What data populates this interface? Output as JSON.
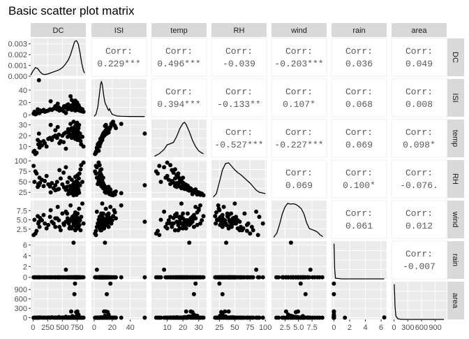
{
  "chart_data": {
    "type": "scatter",
    "title": "Basic scatter plot matrix",
    "variables": [
      "DC",
      "ISI",
      "temp",
      "RH",
      "wind",
      "rain",
      "area"
    ],
    "ranges": {
      "DC": [
        -40,
        900
      ],
      "ISI": [
        -3,
        58
      ],
      "temp": [
        0,
        35
      ],
      "RH": [
        12,
        102
      ],
      "wind": [
        0,
        10.2
      ],
      "rain": [
        -0.3,
        6.7
      ],
      "area": [
        -55,
        1150
      ]
    },
    "ticks": {
      "DC": {
        "values": [
          0,
          250,
          500,
          750
        ],
        "labels": [
          "0",
          "250",
          "500",
          "750"
        ]
      },
      "ISI": {
        "values": [
          0,
          20,
          40
        ],
        "labels": [
          "0",
          "20",
          "40"
        ]
      },
      "temp": {
        "values": [
          10,
          20,
          30
        ],
        "labels": [
          "10",
          "20",
          "30"
        ]
      },
      "RH": {
        "values": [
          25,
          50,
          75,
          100
        ],
        "labels": [
          "25",
          "50",
          "75",
          "100"
        ]
      },
      "wind": {
        "values": [
          2.5,
          5.0,
          7.5
        ],
        "labels": [
          "2.5",
          "5.0",
          "7.5"
        ]
      },
      "rain": {
        "values": [
          0,
          2,
          4,
          6
        ],
        "labels": [
          "0",
          "2",
          "4",
          "6"
        ]
      },
      "area": {
        "values": [
          0,
          300,
          600,
          900
        ],
        "labels": [
          "0",
          "300",
          "600",
          "900"
        ]
      }
    },
    "bottom_ticks": {
      "DC": [
        "0",
        "250",
        "500",
        "750"
      ],
      "ISI": [
        "0",
        "20",
        "40"
      ],
      "temp": [
        "10",
        "20",
        "30"
      ],
      "RH": [
        "25",
        "50",
        "75",
        "100"
      ],
      "wind": [
        "2.5",
        "5.0",
        "7.5"
      ],
      "rain": [
        "0",
        "2",
        "4",
        "6"
      ],
      "area": [
        "0",
        "300",
        "600",
        "900"
      ]
    },
    "density_axis": {
      "values": [
        0,
        0.001,
        0.002,
        0.003
      ],
      "labels": [
        "0.000",
        "0.001",
        "0.002",
        "0.003"
      ],
      "range": [
        0,
        0.0035
      ]
    },
    "correlations": [
      {
        "row": "ISI",
        "col": "DC",
        "label": "Corr:",
        "value": "0.229***"
      },
      {
        "row": "temp",
        "col": "DC",
        "label": "Corr:",
        "value": "0.496***"
      },
      {
        "row": "RH",
        "col": "DC",
        "label": "Corr:",
        "value": "-0.039"
      },
      {
        "row": "wind",
        "col": "DC",
        "label": "Corr:",
        "value": "-0.203***"
      },
      {
        "row": "rain",
        "col": "DC",
        "label": "Corr:",
        "value": "0.036"
      },
      {
        "row": "area",
        "col": "DC",
        "label": "Corr:",
        "value": "0.049"
      },
      {
        "row": "temp",
        "col": "ISI",
        "label": "Corr:",
        "value": "0.394***"
      },
      {
        "row": "RH",
        "col": "ISI",
        "label": "Corr:",
        "value": "-0.133**"
      },
      {
        "row": "wind",
        "col": "ISI",
        "label": "Corr:",
        "value": "0.107*"
      },
      {
        "row": "rain",
        "col": "ISI",
        "label": "Corr:",
        "value": "0.068"
      },
      {
        "row": "area",
        "col": "ISI",
        "label": "Corr:",
        "value": "0.008"
      },
      {
        "row": "RH",
        "col": "temp",
        "label": "Corr:",
        "value": "-0.527***"
      },
      {
        "row": "wind",
        "col": "temp",
        "label": "Corr:",
        "value": "-0.227***"
      },
      {
        "row": "rain",
        "col": "temp",
        "label": "Corr:",
        "value": "0.069"
      },
      {
        "row": "area",
        "col": "temp",
        "label": "Corr:",
        "value": "0.098*"
      },
      {
        "row": "wind",
        "col": "RH",
        "label": "Corr:",
        "value": "0.069"
      },
      {
        "row": "rain",
        "col": "RH",
        "label": "Corr:",
        "value": "0.100*"
      },
      {
        "row": "area",
        "col": "RH",
        "label": "Corr:",
        "value": "-0.076."
      },
      {
        "row": "rain",
        "col": "wind",
        "label": "Corr:",
        "value": "0.061"
      },
      {
        "row": "area",
        "col": "wind",
        "label": "Corr:",
        "value": "0.012"
      },
      {
        "row": "area",
        "col": "rain",
        "label": "Corr:",
        "value": "-0.007"
      }
    ],
    "densities": {
      "DC": {
        "x": [
          -40,
          0,
          40,
          80,
          120,
          160,
          200,
          250,
          300,
          350,
          400,
          450,
          500,
          550,
          600,
          640,
          680,
          710,
          740,
          770,
          800,
          830,
          860,
          880
        ],
        "y": [
          0.0001,
          0.0005,
          0.0008,
          0.0007,
          0.0004,
          0.0002,
          0.00015,
          0.0002,
          0.0003,
          0.0004,
          0.0005,
          0.0006,
          0.0008,
          0.0011,
          0.0015,
          0.002,
          0.0027,
          0.0032,
          0.0033,
          0.003,
          0.0022,
          0.0012,
          0.0005,
          0.0003
        ]
      },
      "ISI": {
        "x": [
          0,
          2,
          4,
          6,
          7,
          8,
          9,
          10,
          11,
          12,
          13,
          14,
          15,
          16,
          17,
          18,
          20,
          25,
          30,
          40,
          50,
          56
        ],
        "y": [
          0.05,
          0.3,
          1.2,
          3.0,
          4.0,
          4.4,
          4.1,
          3.2,
          2.4,
          1.8,
          1.5,
          1.3,
          1.0,
          0.8,
          1.0,
          0.7,
          0.3,
          0.1,
          0.05,
          0.03,
          0.03,
          0.02
        ]
      },
      "temp": {
        "x": [
          2,
          5,
          8,
          10,
          12,
          14,
          16,
          18,
          20,
          21,
          22,
          24,
          26,
          28,
          30,
          32,
          33
        ],
        "y": [
          0.03,
          0.1,
          0.22,
          0.35,
          0.38,
          0.42,
          0.58,
          0.8,
          0.95,
          0.98,
          0.92,
          0.72,
          0.48,
          0.3,
          0.18,
          0.12,
          0.1
        ]
      },
      "RH": {
        "x": [
          15,
          20,
          25,
          30,
          35,
          40,
          45,
          50,
          55,
          60,
          65,
          70,
          75,
          80,
          85,
          90,
          95,
          100
        ],
        "y": [
          0.02,
          0.12,
          0.45,
          0.8,
          0.98,
          1.0,
          0.9,
          0.8,
          0.72,
          0.66,
          0.58,
          0.5,
          0.42,
          0.32,
          0.22,
          0.16,
          0.14,
          0.12
        ]
      },
      "wind": {
        "x": [
          0.4,
          1,
          1.5,
          2,
          2.5,
          3,
          3.5,
          4,
          4.5,
          5,
          5.5,
          6,
          6.5,
          7,
          7.5,
          8,
          8.5,
          9,
          9.5
        ],
        "y": [
          0.03,
          0.15,
          0.4,
          0.7,
          0.9,
          1.0,
          0.98,
          0.99,
          0.97,
          0.92,
          0.85,
          0.7,
          0.45,
          0.28,
          0.25,
          0.22,
          0.18,
          0.1,
          0.05
        ]
      },
      "rain": {
        "x": [
          0,
          0.02,
          0.05,
          0.1,
          0.2,
          1,
          3,
          6.4
        ],
        "y": [
          1.0,
          1.0,
          0.8,
          0.3,
          0.02,
          0.0,
          0.0,
          0.0
        ]
      },
      "area": {
        "x": [
          0,
          5,
          10,
          20,
          40,
          80,
          150,
          300,
          600,
          1090
        ],
        "y": [
          1.0,
          1.0,
          0.8,
          0.4,
          0.1,
          0.02,
          0.005,
          0.0,
          0.0,
          0.0
        ]
      }
    },
    "points": [
      {
        "DC": 24,
        "ISI": 5,
        "temp": 6,
        "RH": 50,
        "wind": 5.0,
        "rain": 0,
        "area": 0
      },
      {
        "DC": 60,
        "ISI": 2,
        "temp": 4,
        "RH": 70,
        "wind": 2.0,
        "rain": 0,
        "area": 0
      },
      {
        "DC": 80,
        "ISI": 9,
        "temp": 16,
        "RH": 38,
        "wind": 6.0,
        "rain": 0,
        "area": 0
      },
      {
        "DC": 90,
        "ISI": 4,
        "temp": 12,
        "RH": 45,
        "wind": 4.0,
        "rain": 0,
        "area": 5
      },
      {
        "DC": 100,
        "ISI": 56,
        "temp": 22,
        "RH": 42,
        "wind": 4.5,
        "rain": 0,
        "area": 0
      },
      {
        "DC": 110,
        "ISI": 3,
        "temp": 9,
        "RH": 60,
        "wind": 3.1,
        "rain": 0,
        "area": 0
      },
      {
        "DC": 120,
        "ISI": 7,
        "temp": 14,
        "RH": 48,
        "wind": 5.5,
        "rain": 0,
        "area": 10
      },
      {
        "DC": 150,
        "ISI": 6,
        "temp": 11,
        "RH": 55,
        "wind": 4.9,
        "rain": 0,
        "area": 0
      },
      {
        "DC": 180,
        "ISI": 8,
        "temp": 15,
        "RH": 40,
        "wind": 6.3,
        "rain": 0,
        "area": 3
      },
      {
        "DC": 200,
        "ISI": 5,
        "temp": 13,
        "RH": 52,
        "wind": 4.0,
        "rain": 0,
        "area": 0
      },
      {
        "DC": 230,
        "ISI": 6,
        "temp": 10,
        "RH": 64,
        "wind": 2.7,
        "rain": 0,
        "area": 0
      },
      {
        "DC": 260,
        "ISI": 7,
        "temp": 17,
        "RH": 44,
        "wind": 3.6,
        "rain": 0,
        "area": 6
      },
      {
        "DC": 290,
        "ISI": 9,
        "temp": 18,
        "RH": 39,
        "wind": 5.8,
        "rain": 0,
        "area": 0
      },
      {
        "DC": 320,
        "ISI": 8,
        "temp": 16,
        "RH": 47,
        "wind": 4.5,
        "rain": 0,
        "area": 12
      },
      {
        "DC": 350,
        "ISI": 10,
        "temp": 19,
        "RH": 35,
        "wind": 4.0,
        "rain": 0,
        "area": 0
      },
      {
        "DC": 380,
        "ISI": 11,
        "temp": 20,
        "RH": 42,
        "wind": 3.1,
        "rain": 0,
        "area": 4
      },
      {
        "DC": 410,
        "ISI": 9,
        "temp": 18,
        "RH": 50,
        "wind": 5.4,
        "rain": 0,
        "area": 0
      },
      {
        "DC": 440,
        "ISI": 12,
        "temp": 21,
        "RH": 33,
        "wind": 4.9,
        "rain": 0,
        "area": 20
      },
      {
        "DC": 470,
        "ISI": 8,
        "temp": 15,
        "RH": 58,
        "wind": 2.2,
        "rain": 0,
        "area": 0
      },
      {
        "DC": 500,
        "ISI": 10,
        "temp": 20,
        "RH": 44,
        "wind": 6.7,
        "rain": 0,
        "area": 8
      },
      {
        "DC": 530,
        "ISI": 14,
        "temp": 22,
        "RH": 37,
        "wind": 3.6,
        "rain": 0,
        "area": 0
      },
      {
        "DC": 560,
        "ISI": 12,
        "temp": 23,
        "RH": 31,
        "wind": 4.5,
        "rain": 0,
        "area": 30
      },
      {
        "DC": 590,
        "ISI": 9,
        "temp": 19,
        "RH": 49,
        "wind": 5.4,
        "rain": 0,
        "area": 0
      },
      {
        "DC": 610,
        "ISI": 15,
        "temp": 24,
        "RH": 29,
        "wind": 4.0,
        "rain": 0,
        "area": 15
      },
      {
        "DC": 630,
        "ISI": 11,
        "temp": 21,
        "RH": 40,
        "wind": 3.1,
        "rain": 0,
        "area": 0
      },
      {
        "DC": 650,
        "ISI": 13,
        "temp": 25,
        "RH": 34,
        "wind": 4.9,
        "rain": 0,
        "area": 200
      },
      {
        "DC": 660,
        "ISI": 8,
        "temp": 18,
        "RH": 55,
        "wind": 2.7,
        "rain": 0,
        "area": 0
      },
      {
        "DC": 670,
        "ISI": 16,
        "temp": 26,
        "RH": 27,
        "wind": 5.8,
        "rain": 0,
        "area": 50
      },
      {
        "DC": 680,
        "ISI": 10,
        "temp": 22,
        "RH": 43,
        "wind": 4.5,
        "rain": 0,
        "area": 0
      },
      {
        "DC": 690,
        "ISI": 12,
        "temp": 24,
        "RH": 36,
        "wind": 3.6,
        "rain": 6.4,
        "area": 10
      },
      {
        "DC": 700,
        "ISI": 9,
        "temp": 20,
        "RH": 48,
        "wind": 4.0,
        "rain": 0,
        "area": 0
      },
      {
        "DC": 705,
        "ISI": 14,
        "temp": 27,
        "RH": 30,
        "wind": 6.3,
        "rain": 0,
        "area": 750
      },
      {
        "DC": 710,
        "ISI": 11,
        "temp": 23,
        "RH": 41,
        "wind": 4.9,
        "rain": 0,
        "area": 0
      },
      {
        "DC": 715,
        "ISI": 18,
        "temp": 28,
        "RH": 25,
        "wind": 5.4,
        "rain": 0,
        "area": 1090
      },
      {
        "DC": 720,
        "ISI": 7,
        "temp": 17,
        "RH": 62,
        "wind": 2.2,
        "rain": 0,
        "area": 0
      },
      {
        "DC": 725,
        "ISI": 13,
        "temp": 25,
        "RH": 33,
        "wind": 4.0,
        "rain": 0,
        "area": 25
      },
      {
        "DC": 730,
        "ISI": 10,
        "temp": 21,
        "RH": 45,
        "wind": 3.1,
        "rain": 0,
        "area": 0
      },
      {
        "DC": 735,
        "ISI": 15,
        "temp": 26,
        "RH": 28,
        "wind": 4.5,
        "rain": 0,
        "area": 180
      },
      {
        "DC": 740,
        "ISI": 9,
        "temp": 19,
        "RH": 52,
        "wind": 5.8,
        "rain": 0,
        "area": 0
      },
      {
        "DC": 745,
        "ISI": 12,
        "temp": 29,
        "RH": 26,
        "wind": 3.6,
        "rain": 0,
        "area": 60
      },
      {
        "DC": 750,
        "ISI": 20,
        "temp": 32,
        "RH": 22,
        "wind": 4.9,
        "rain": 0,
        "area": 0
      },
      {
        "DC": 755,
        "ISI": 11,
        "temp": 22,
        "RH": 40,
        "wind": 2.7,
        "rain": 0,
        "area": 200
      },
      {
        "DC": 760,
        "ISI": 8,
        "temp": 16,
        "RH": 66,
        "wind": 6.7,
        "rain": 0,
        "area": 0
      },
      {
        "DC": 765,
        "ISI": 14,
        "temp": 24,
        "RH": 35,
        "wind": 4.0,
        "rain": 0,
        "area": 40
      },
      {
        "DC": 770,
        "ISI": 10,
        "temp": 20,
        "RH": 47,
        "wind": 5.4,
        "rain": 0,
        "area": 0
      },
      {
        "DC": 775,
        "ISI": 16,
        "temp": 27,
        "RH": 30,
        "wind": 3.1,
        "rain": 0,
        "area": 100
      },
      {
        "DC": 780,
        "ISI": 9,
        "temp": 18,
        "RH": 58,
        "wind": 4.5,
        "rain": 0,
        "area": 0
      },
      {
        "DC": 785,
        "ISI": 13,
        "temp": 30,
        "RH": 24,
        "wind": 8.0,
        "rain": 0,
        "area": 0
      },
      {
        "DC": 790,
        "ISI": 7,
        "temp": 17,
        "RH": 70,
        "wind": 3.6,
        "rain": 0,
        "area": 0
      },
      {
        "DC": 800,
        "ISI": 11,
        "temp": 22,
        "RH": 42,
        "wind": 4.9,
        "rain": 0,
        "area": 5
      },
      {
        "DC": 810,
        "ISI": 8,
        "temp": 15,
        "RH": 80,
        "wind": 2.2,
        "rain": 0,
        "area": 0
      },
      {
        "DC": 820,
        "ISI": 6,
        "temp": 12,
        "RH": 90,
        "wind": 5.8,
        "rain": 0,
        "area": 0
      },
      {
        "DC": 840,
        "ISI": 9,
        "temp": 19,
        "RH": 50,
        "wind": 9.4,
        "rain": 0,
        "area": 0
      },
      {
        "DC": 860,
        "ISI": 5,
        "temp": 10,
        "RH": 96,
        "wind": 4.0,
        "rain": 0,
        "area": 0
      },
      {
        "DC": 300,
        "ISI": 22,
        "temp": 30,
        "RH": 25,
        "wind": 7.6,
        "rain": 0,
        "area": 0
      },
      {
        "DC": 420,
        "ISI": 18,
        "temp": 28,
        "RH": 32,
        "wind": 8.5,
        "rain": 0,
        "area": 0
      },
      {
        "DC": 560,
        "ISI": 3,
        "temp": 8,
        "RH": 85,
        "wind": 7.2,
        "rain": 1.4,
        "area": 0
      },
      {
        "DC": 600,
        "ISI": 17,
        "temp": 26,
        "RH": 21,
        "wind": 5.0,
        "rain": 0,
        "area": 0
      },
      {
        "DC": 690,
        "ISI": 21,
        "temp": 33,
        "RH": 18,
        "wind": 6.0,
        "rain": 0,
        "area": 0
      },
      {
        "DC": 720,
        "ISI": 23,
        "temp": 29,
        "RH": 20,
        "wind": 7.0,
        "rain": 0,
        "area": 0
      },
      {
        "DC": 40,
        "ISI": 1,
        "temp": 3,
        "RH": 75,
        "wind": 1.3,
        "rain": 0,
        "area": 0
      },
      {
        "DC": 10,
        "ISI": 2,
        "temp": 5,
        "RH": 88,
        "wind": 0.9,
        "rain": 0,
        "area": 0
      },
      {
        "DC": 640,
        "ISI": 30,
        "temp": 31,
        "RH": 23,
        "wind": 8.9,
        "rain": 0,
        "area": 0
      },
      {
        "DC": 660,
        "ISI": 24,
        "temp": 27,
        "RH": 27,
        "wind": 5.4,
        "rain": 0,
        "area": 0
      },
      {
        "DC": 740,
        "ISI": 19,
        "temp": 31,
        "RH": 19,
        "wind": 4.0,
        "rain": 0,
        "area": 0
      },
      {
        "DC": 520,
        "ISI": 6,
        "temp": 14,
        "RH": 72,
        "wind": 4.0,
        "rain": 0,
        "area": 0
      },
      {
        "DC": 580,
        "ISI": 16,
        "temp": 23,
        "RH": 38,
        "wind": 6.7,
        "rain": 0,
        "area": 0
      },
      {
        "DC": 620,
        "ISI": 10,
        "temp": 20,
        "RH": 60,
        "wind": 2.7,
        "rain": 0,
        "area": 0
      },
      {
        "DC": 450,
        "ISI": 7,
        "temp": 13,
        "RH": 78,
        "wind": 3.1,
        "rain": 0,
        "area": 0
      },
      {
        "DC": 380,
        "ISI": 14,
        "temp": 25,
        "RH": 30,
        "wind": 5.4,
        "rain": 0,
        "area": 0
      }
    ]
  }
}
